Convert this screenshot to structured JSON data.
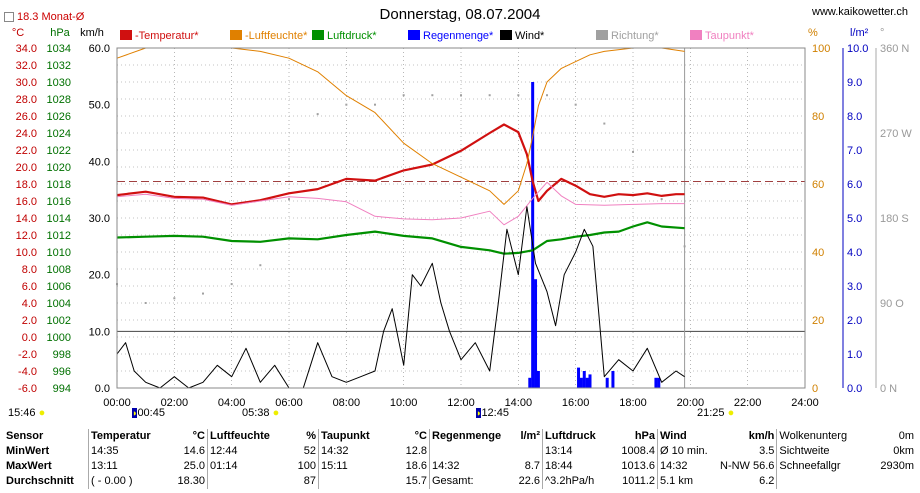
{
  "header": {
    "title": "Donnerstag, 08.07.2004",
    "site": "www.kaikowetter.ch",
    "monat": "18.3 Monat-Ø",
    "unit_left": [
      "°C",
      "hPa",
      "km/h"
    ],
    "unit_right": [
      "%",
      "l/m²",
      "°"
    ]
  },
  "legend": [
    {
      "label": "-Temperatur*",
      "color": "#d01010"
    },
    {
      "label": "-Luftfeuchte*",
      "color": "#e08000"
    },
    {
      "label": "Luftdruck*",
      "color": "#009000"
    },
    {
      "label": "Regenmenge*",
      "color": "#0000ff"
    },
    {
      "label": "Wind*",
      "color": "#000000"
    },
    {
      "label": "Richtung*",
      "color": "#a0a0a0"
    },
    {
      "label": "Taupunkt*",
      "color": "#f080c0"
    }
  ],
  "axes": {
    "temp_ticks": [
      "34.0",
      "32.0",
      "30.0",
      "28.0",
      "26.0",
      "24.0",
      "22.0",
      "20.0",
      "18.0",
      "16.0",
      "14.0",
      "12.0",
      "10.0",
      "8.0",
      "6.0",
      "4.0",
      "2.0",
      "0.0",
      "-2.0",
      "-4.0",
      "-6.0"
    ],
    "pressure_ticks": [
      "1034",
      "1032",
      "1030",
      "1028",
      "1026",
      "1024",
      "1022",
      "1020",
      "1018",
      "1016",
      "1014",
      "1012",
      "1010",
      "1008",
      "1006",
      "1004",
      "1002",
      "1000",
      "998",
      "996",
      "994"
    ],
    "wind_ticks": [
      "60.0",
      "50.0",
      "40.0",
      "30.0",
      "20.0",
      "10.0",
      "0.0"
    ],
    "humidity_ticks": [
      "100",
      "80",
      "60",
      "40",
      "20",
      "0"
    ],
    "rain_ticks": [
      "10.0",
      "9.0",
      "8.0",
      "7.0",
      "6.0",
      "5.0",
      "4.0",
      "3.0",
      "2.0",
      "1.0",
      "0.0"
    ],
    "direction_ticks": [
      "360 N",
      "270 W",
      "180 S",
      "90 O",
      "0 N"
    ],
    "x_ticks": [
      "00:00",
      "02:00",
      "04:00",
      "06:00",
      "08:00",
      "10:00",
      "12:00",
      "14:00",
      "16:00",
      "18:00",
      "20:00",
      "22:00",
      "24:00"
    ]
  },
  "sun": {
    "sunrise": "05:38",
    "sunset": "21:25",
    "moonset": "00:45",
    "moonrise": "12:45",
    "duration_left": "15:46"
  },
  "chart_data": {
    "type": "line",
    "title": "Donnerstag, 08.07.2004",
    "x_unit": "hours",
    "xlim": [
      0,
      24
    ],
    "reference_temperature": 18.3,
    "series": [
      {
        "name": "-Temperatur*",
        "axis": "°C",
        "ylim": [
          -6,
          34
        ],
        "x": [
          0,
          1,
          2,
          3,
          4,
          5,
          6,
          7,
          8,
          9,
          10,
          11,
          12,
          13,
          13.5,
          14,
          14.3,
          14.5,
          14.7,
          15,
          15.5,
          16,
          16.5,
          17,
          17.5,
          18,
          18.5,
          19,
          19.5,
          19.8
        ],
        "values": [
          16.7,
          17.1,
          16.5,
          16.4,
          15.6,
          16.1,
          16.9,
          17.4,
          18.6,
          18.4,
          19.6,
          20.3,
          21.9,
          24.0,
          25.0,
          24.1,
          21.5,
          18.3,
          16.0,
          17.2,
          18.6,
          17.8,
          16.8,
          16.5,
          16.8,
          16.7,
          16.9,
          16.6,
          16.8,
          16.8
        ]
      },
      {
        "name": "-Luftfeuchte*",
        "axis": "%",
        "ylim": [
          0,
          100
        ],
        "x": [
          0,
          1,
          2,
          3,
          4,
          5,
          6,
          7,
          8,
          9,
          10,
          11,
          12,
          13,
          13.5,
          14,
          14.3,
          14.5,
          14.7,
          15,
          15.5,
          16,
          16.5,
          17,
          18,
          19,
          19.8
        ],
        "values": [
          97,
          100,
          100,
          100,
          100,
          99,
          97,
          93,
          86,
          81,
          72,
          66,
          62,
          58,
          54,
          58,
          66,
          74,
          83,
          90,
          94,
          96,
          98,
          99,
          100,
          100,
          99
        ]
      },
      {
        "name": "Luftdruck*",
        "axis": "hPa",
        "ylim": [
          994,
          1034
        ],
        "x": [
          0,
          1,
          2,
          3,
          4,
          5,
          6,
          7,
          8,
          9,
          10,
          11,
          12,
          13,
          13.5,
          14,
          14.5,
          15,
          15.5,
          16,
          16.5,
          17,
          17.5,
          18,
          18.5,
          19,
          19.8
        ],
        "values": [
          1011.7,
          1011.8,
          1011.9,
          1011.8,
          1011.3,
          1011.2,
          1011.6,
          1011.5,
          1012.0,
          1012.4,
          1011.9,
          1011.6,
          1010.6,
          1010.2,
          1009.8,
          1009.9,
          1010.2,
          1011.3,
          1011.5,
          1011.8,
          1012.0,
          1012.3,
          1012.4,
          1013.0,
          1013.5,
          1013.0,
          1012.8
        ]
      },
      {
        "name": "Taupunkt*",
        "axis": "°C",
        "ylim": [
          -6,
          34
        ],
        "x": [
          0,
          1,
          2,
          3,
          4,
          5,
          6,
          7,
          8,
          9,
          10,
          11,
          12,
          13,
          13.5,
          14,
          14.5,
          15,
          15.5,
          16,
          17,
          18,
          19,
          19.8
        ],
        "values": [
          16.5,
          16.8,
          16.3,
          16.2,
          15.5,
          16.0,
          16.5,
          16.3,
          15.9,
          14.2,
          13.9,
          13.8,
          14.0,
          14.8,
          13.2,
          14.2,
          16.3,
          18.2,
          16.6,
          15.6,
          15.5,
          15.6,
          15.7,
          15.7
        ]
      },
      {
        "name": "Wind*",
        "axis": "km/h",
        "ylim": [
          0,
          60
        ],
        "x": [
          0,
          0.3,
          0.6,
          1,
          1.5,
          2,
          2.5,
          3,
          3.5,
          4,
          4.5,
          5,
          5.5,
          6,
          6.5,
          7,
          7.5,
          8,
          8.5,
          9,
          9.3,
          9.6,
          10,
          10.3,
          10.6,
          11,
          11.3,
          11.6,
          12,
          12.5,
          13,
          13.3,
          13.6,
          14,
          14.3,
          14.6,
          15,
          15.3,
          15.6,
          16,
          16.3,
          16.6,
          17,
          17.5,
          18,
          18.5,
          19,
          19.5,
          19.8
        ],
        "values": [
          6,
          8,
          3,
          1,
          0,
          2,
          0,
          1,
          4,
          2,
          7,
          1,
          4,
          0,
          0,
          8,
          2,
          1,
          2,
          3,
          10,
          14,
          4,
          20,
          18,
          22,
          15,
          10,
          5,
          8,
          3,
          15,
          28,
          20,
          32,
          22,
          17,
          11,
          20,
          24,
          28,
          25,
          2,
          5,
          3,
          7,
          1,
          3,
          2
        ]
      },
      {
        "name": "Richtung*",
        "axis": "°",
        "ylim": [
          0,
          360
        ],
        "x": [
          0,
          1,
          2,
          3,
          4,
          5,
          6,
          7,
          8,
          9,
          10,
          11,
          12,
          13,
          14,
          14.5,
          15,
          16,
          17,
          18,
          19,
          19.8
        ],
        "values": [
          110,
          90,
          95,
          100,
          110,
          130,
          200,
          290,
          300,
          300,
          310,
          310,
          310,
          310,
          310,
          320,
          310,
          300,
          280,
          250,
          200,
          150
        ]
      },
      {
        "name": "Regenmenge*",
        "axis": "l/m²",
        "ylim": [
          0,
          10
        ],
        "x": [
          14.4,
          14.5,
          14.6,
          14.7,
          16.1,
          16.2,
          16.3,
          16.4,
          16.5,
          17.1,
          17.3,
          18.8,
          18.9
        ],
        "values": [
          0.3,
          9.0,
          3.2,
          0.5,
          0.6,
          0.3,
          0.5,
          0.3,
          0.4,
          0.3,
          0.5,
          0.3,
          0.3
        ]
      }
    ]
  },
  "stats": {
    "headers": [
      "Sensor",
      "Temperatur",
      "°C",
      "Luftfeuchte",
      "%",
      "Taupunkt",
      "°C",
      "Regenmenge",
      "l/m²",
      "Luftdruck",
      "hPa",
      "Wind",
      "km/h",
      "Wolkenunterg",
      "0m"
    ],
    "rows": [
      [
        "MinWert",
        "14:35",
        "14.6",
        "12:44",
        "52",
        "14:32",
        "12.8",
        "",
        "",
        "13:14",
        "1008.4",
        "Ø 10 min.",
        "3.5",
        "Sichtweite",
        "0km"
      ],
      [
        "MaxWert",
        "13:11",
        "25.0",
        "01:14",
        "100",
        "15:11",
        "18.6",
        "14:32",
        "8.7",
        "18:44",
        "1013.6",
        "14:32",
        "N-NW 56.6",
        "Schneefallgr",
        "2930m"
      ],
      [
        "Durchschnitt",
        "( - 0.00 )",
        "18.30",
        "",
        "87",
        "",
        "15.7",
        "Gesamt:",
        "22.6",
        "^3.2hPa/h",
        "1011.2",
        "5.1 km",
        "6.2",
        "",
        ""
      ]
    ]
  }
}
